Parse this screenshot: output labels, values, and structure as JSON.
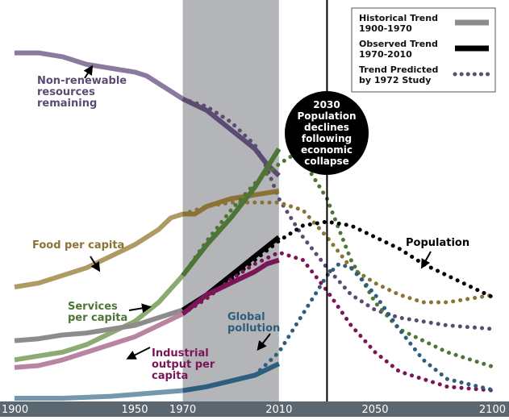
{
  "chart_data": {
    "type": "line",
    "xlim": [
      1900,
      2100
    ],
    "ylim": [
      0,
      1
    ],
    "x_ticks": [
      {
        "value": 1900,
        "label": "1900"
      },
      {
        "value": 1950,
        "label": "1950"
      },
      {
        "value": 1970,
        "label": "1970"
      },
      {
        "value": 2010,
        "label": "2010"
      },
      {
        "value": 2050,
        "label": "2050"
      },
      {
        "value": 2100,
        "label": "2100"
      }
    ],
    "shaded_period": [
      1970,
      2010
    ],
    "marker_year": 2030,
    "callout": {
      "lines": [
        "2030",
        "Population",
        "declines",
        "following",
        "economic",
        "collapse"
      ]
    },
    "legend": {
      "placement": "top-right",
      "items": [
        {
          "label_lines": [
            "Historical Trend",
            "1900-1970"
          ],
          "style": "historical",
          "color": "#8c8c8c"
        },
        {
          "label_lines": [
            "Observed Trend",
            "1970-2010"
          ],
          "style": "observed",
          "color": "#000000"
        },
        {
          "label_lines": [
            "Trend Predicted",
            "by 1972 Study"
          ],
          "style": "predicted",
          "color": "#555566"
        }
      ]
    },
    "series": [
      {
        "key": "resources",
        "label_lines": [
          "Non-renewable",
          "resources",
          "remaining"
        ],
        "color": "#5b4a72",
        "light": "#8a7a9e",
        "historical": [
          [
            1900,
            0.9
          ],
          [
            1910,
            0.9
          ],
          [
            1920,
            0.89
          ],
          [
            1925,
            0.88
          ],
          [
            1930,
            0.87
          ],
          [
            1940,
            0.86
          ],
          [
            1950,
            0.85
          ],
          [
            1955,
            0.84
          ],
          [
            1960,
            0.82
          ],
          [
            1965,
            0.8
          ],
          [
            1970,
            0.78
          ]
        ],
        "observed": [
          [
            1970,
            0.78
          ],
          [
            1980,
            0.75
          ],
          [
            1990,
            0.7
          ],
          [
            2000,
            0.65
          ],
          [
            2005,
            0.61
          ],
          [
            2010,
            0.58
          ]
        ],
        "predicted": [
          [
            1970,
            0.78
          ],
          [
            1980,
            0.76
          ],
          [
            1990,
            0.72
          ],
          [
            2000,
            0.66
          ],
          [
            2005,
            0.6
          ],
          [
            2010,
            0.52
          ],
          [
            2020,
            0.42
          ],
          [
            2030,
            0.34
          ],
          [
            2040,
            0.27
          ],
          [
            2050,
            0.23
          ],
          [
            2060,
            0.21
          ],
          [
            2080,
            0.19
          ],
          [
            2100,
            0.18
          ]
        ]
      },
      {
        "key": "food",
        "label_lines": [
          "Food per capita"
        ],
        "color": "#8b7335",
        "light": "#b09a63",
        "historical": [
          [
            1900,
            0.29
          ],
          [
            1910,
            0.3
          ],
          [
            1920,
            0.32
          ],
          [
            1930,
            0.34
          ],
          [
            1940,
            0.37
          ],
          [
            1950,
            0.4
          ],
          [
            1960,
            0.44
          ],
          [
            1965,
            0.47
          ],
          [
            1970,
            0.48
          ]
        ],
        "observed": [
          [
            1970,
            0.48
          ],
          [
            1975,
            0.48
          ],
          [
            1980,
            0.5
          ],
          [
            1990,
            0.52
          ],
          [
            2000,
            0.53
          ],
          [
            2010,
            0.54
          ]
        ],
        "predicted": [
          [
            1970,
            0.48
          ],
          [
            1980,
            0.5
          ],
          [
            1990,
            0.51
          ],
          [
            2000,
            0.51
          ],
          [
            2010,
            0.51
          ],
          [
            2020,
            0.49
          ],
          [
            2030,
            0.42
          ],
          [
            2040,
            0.34
          ],
          [
            2050,
            0.3
          ],
          [
            2060,
            0.27
          ],
          [
            2070,
            0.25
          ],
          [
            2080,
            0.25
          ],
          [
            2090,
            0.26
          ],
          [
            2100,
            0.27
          ]
        ]
      },
      {
        "key": "services",
        "label_lines": [
          "Services",
          "per capita"
        ],
        "color": "#4e7536",
        "light": "#8daa72",
        "historical": [
          [
            1900,
            0.1
          ],
          [
            1910,
            0.11
          ],
          [
            1920,
            0.12
          ],
          [
            1930,
            0.14
          ],
          [
            1940,
            0.17
          ],
          [
            1950,
            0.2
          ],
          [
            1960,
            0.25
          ],
          [
            1970,
            0.32
          ]
        ],
        "observed": [
          [
            1970,
            0.32
          ],
          [
            1980,
            0.4
          ],
          [
            1990,
            0.47
          ],
          [
            2000,
            0.55
          ],
          [
            2005,
            0.6
          ],
          [
            2010,
            0.65
          ]
        ],
        "predicted": [
          [
            1970,
            0.32
          ],
          [
            1980,
            0.41
          ],
          [
            1990,
            0.49
          ],
          [
            2000,
            0.56
          ],
          [
            2010,
            0.61
          ],
          [
            2015,
            0.63
          ],
          [
            2020,
            0.62
          ],
          [
            2030,
            0.52
          ],
          [
            2040,
            0.36
          ],
          [
            2050,
            0.25
          ],
          [
            2060,
            0.18
          ],
          [
            2080,
            0.12
          ],
          [
            2100,
            0.08
          ]
        ]
      },
      {
        "key": "population",
        "label_lines": [
          "Population"
        ],
        "color": "#000000",
        "light": "#8c8c8c",
        "historical": [
          [
            1900,
            0.15
          ],
          [
            1910,
            0.155
          ],
          [
            1920,
            0.165
          ],
          [
            1930,
            0.17
          ],
          [
            1940,
            0.18
          ],
          [
            1950,
            0.19
          ],
          [
            1960,
            0.21
          ],
          [
            1970,
            0.23
          ]
        ],
        "observed": [
          [
            1970,
            0.23
          ],
          [
            1980,
            0.27
          ],
          [
            1990,
            0.32
          ],
          [
            2000,
            0.37
          ],
          [
            2010,
            0.42
          ]
        ],
        "predicted": [
          [
            1970,
            0.23
          ],
          [
            1980,
            0.27
          ],
          [
            1990,
            0.31
          ],
          [
            2000,
            0.36
          ],
          [
            2010,
            0.41
          ],
          [
            2020,
            0.45
          ],
          [
            2030,
            0.46
          ],
          [
            2040,
            0.45
          ],
          [
            2050,
            0.42
          ],
          [
            2060,
            0.39
          ],
          [
            2070,
            0.35
          ],
          [
            2080,
            0.32
          ],
          [
            2090,
            0.29
          ],
          [
            2100,
            0.26
          ]
        ]
      },
      {
        "key": "industrial",
        "label_lines": [
          "Industrial",
          "output per",
          "capita"
        ],
        "color": "#7a1558",
        "light": "#b8849f",
        "historical": [
          [
            1900,
            0.08
          ],
          [
            1910,
            0.085
          ],
          [
            1920,
            0.1
          ],
          [
            1930,
            0.12
          ],
          [
            1940,
            0.14
          ],
          [
            1950,
            0.16
          ],
          [
            1960,
            0.19
          ],
          [
            1970,
            0.22
          ]
        ],
        "observed": [
          [
            1970,
            0.22
          ],
          [
            1980,
            0.27
          ],
          [
            1990,
            0.3
          ],
          [
            2000,
            0.33
          ],
          [
            2005,
            0.35
          ],
          [
            2010,
            0.36
          ]
        ],
        "predicted": [
          [
            1970,
            0.22
          ],
          [
            1980,
            0.26
          ],
          [
            1990,
            0.31
          ],
          [
            2000,
            0.35
          ],
          [
            2010,
            0.38
          ],
          [
            2020,
            0.36
          ],
          [
            2030,
            0.28
          ],
          [
            2040,
            0.19
          ],
          [
            2050,
            0.12
          ],
          [
            2060,
            0.07
          ],
          [
            2080,
            0.03
          ],
          [
            2100,
            0.02
          ]
        ]
      },
      {
        "key": "pollution",
        "label_lines": [
          "Global",
          "pollution"
        ],
        "color": "#2e5e7e",
        "light": "#7597ad",
        "historical": [
          [
            1900,
            0.0
          ],
          [
            1920,
            0.0
          ],
          [
            1940,
            0.005
          ],
          [
            1950,
            0.01
          ],
          [
            1960,
            0.015
          ],
          [
            1970,
            0.02
          ]
        ],
        "observed": [
          [
            1970,
            0.02
          ],
          [
            1980,
            0.03
          ],
          [
            1990,
            0.045
          ],
          [
            2000,
            0.06
          ],
          [
            2010,
            0.09
          ]
        ],
        "predicted": [
          [
            2000,
            0.06
          ],
          [
            2010,
            0.12
          ],
          [
            2020,
            0.22
          ],
          [
            2030,
            0.32
          ],
          [
            2035,
            0.35
          ],
          [
            2040,
            0.34
          ],
          [
            2050,
            0.27
          ],
          [
            2060,
            0.18
          ],
          [
            2070,
            0.1
          ],
          [
            2080,
            0.05
          ],
          [
            2100,
            0.02
          ]
        ]
      }
    ]
  }
}
